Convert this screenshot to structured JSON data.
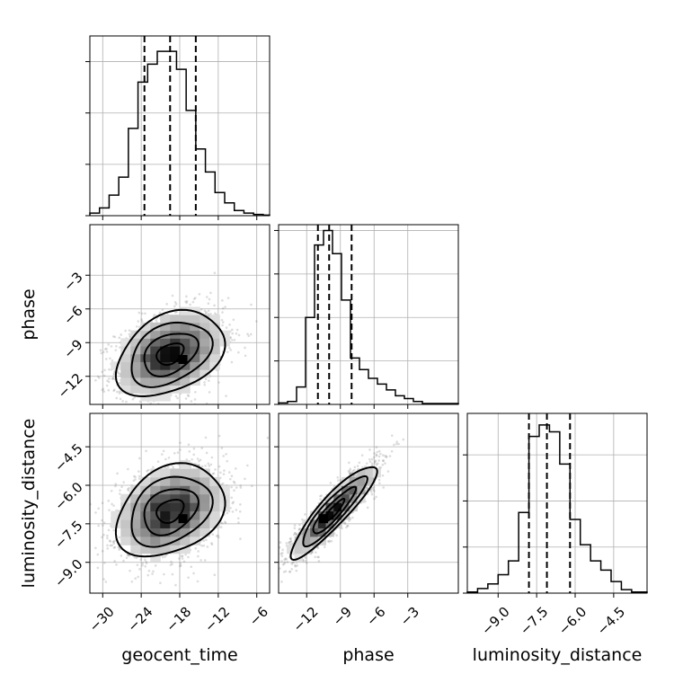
{
  "chart_data": {
    "type": "corner",
    "parameters": [
      "geocent_time",
      "phase",
      "luminosity_distance"
    ],
    "axis_labels": {
      "geocent_time": "geocent_time",
      "phase": "phase",
      "luminosity_distance": "luminosity_distance"
    },
    "ranges": {
      "geocent_time": [
        -32,
        -4
      ],
      "phase": [
        -14.5,
        1.5
      ],
      "luminosity_distance": [
        -10.2,
        -3.2
      ]
    },
    "ticks": {
      "geocent_time": [
        -30,
        -24,
        -18,
        -12,
        -6
      ],
      "phase": [
        -12,
        -9,
        -6,
        -3
      ],
      "luminosity_distance": [
        -9.0,
        -7.5,
        -6.0,
        -4.5
      ]
    },
    "tick_labels": {
      "geocent_time": [
        "−30",
        "−24",
        "−18",
        "−12",
        "−6"
      ],
      "phase": [
        "−12",
        "−9",
        "−6",
        "−3"
      ],
      "luminosity_distance": [
        "−9.0",
        "−7.5",
        "−6.0",
        "−4.5"
      ]
    },
    "quantiles": {
      "geocent_time": [
        -23.5,
        -19.5,
        -15.5
      ],
      "phase": [
        -11.0,
        -10.0,
        -8.0
      ],
      "luminosity_distance": [
        -7.8,
        -7.1,
        -6.2
      ]
    },
    "histograms": {
      "geocent_time": {
        "edges": [
          -32,
          -30.5,
          -29,
          -27.5,
          -26,
          -24.5,
          -23,
          -21.5,
          -20,
          -18.5,
          -17,
          -15.5,
          -14,
          -12.5,
          -11,
          -9.5,
          -8,
          -6.5,
          -5,
          -4
        ],
        "counts": [
          1,
          3,
          8,
          15,
          34,
          52,
          59,
          64,
          64,
          57,
          41,
          26,
          17,
          9,
          5,
          2,
          1,
          0.5,
          0.2
        ]
      },
      "phase": {
        "edges": [
          -14.5,
          -13.7,
          -12.9,
          -12.1,
          -11.3,
          -10.5,
          -9.7,
          -8.9,
          -8.1,
          -7.3,
          -6.5,
          -5.7,
          -4.9,
          -4.1,
          -3.3,
          -2.5,
          -1.7,
          1.5
        ],
        "counts": [
          0.5,
          1,
          6,
          30,
          55,
          60,
          52,
          36,
          16,
          12,
          9,
          7,
          5,
          3,
          2,
          1,
          0.3
        ]
      },
      "luminosity_distance": {
        "edges": [
          -10.2,
          -9.8,
          -9.4,
          -9.0,
          -8.6,
          -8.2,
          -7.8,
          -7.4,
          -7.0,
          -6.6,
          -6.2,
          -5.8,
          -5.4,
          -5.0,
          -4.6,
          -4.2,
          -3.8,
          -3.2
        ],
        "counts": [
          0.5,
          2,
          4,
          8,
          14,
          35,
          68,
          73,
          70,
          56,
          32,
          21,
          14,
          10,
          5,
          1.5,
          0.5
        ]
      },
      "ymax": {
        "geocent_time": 70,
        "phase": 62,
        "luminosity_distance": 78
      },
      "yticks": {
        "geocent_time": [
          0,
          20,
          40,
          60
        ],
        "phase": [
          0,
          15,
          30,
          45,
          60
        ],
        "luminosity_distance": [
          0,
          20,
          40,
          60
        ]
      }
    },
    "pairs": [
      {
        "x": "geocent_time",
        "y": "phase",
        "mean": [
          -19.5,
          -10.0
        ],
        "sigma": [
          4.2,
          1.9
        ],
        "rho": 0.35,
        "samples": 1800,
        "peak": [
          -17.5,
          -10.5
        ]
      },
      {
        "x": "geocent_time",
        "y": "luminosity_distance",
        "mean": [
          -19.5,
          -7.0
        ],
        "sigma": [
          4.2,
          0.9
        ],
        "rho": 0.3,
        "samples": 1800,
        "peak": [
          -17.5,
          -7.3
        ]
      },
      {
        "x": "phase",
        "y": "luminosity_distance",
        "mean": [
          -9.6,
          -7.0
        ],
        "sigma": [
          1.9,
          0.9
        ],
        "rho": 0.9,
        "samples": 1800,
        "peak": [
          -10.5,
          -7.3
        ]
      }
    ],
    "contour_levels": [
      0.5,
      1.0,
      1.5,
      2.0
    ],
    "grid": true
  }
}
